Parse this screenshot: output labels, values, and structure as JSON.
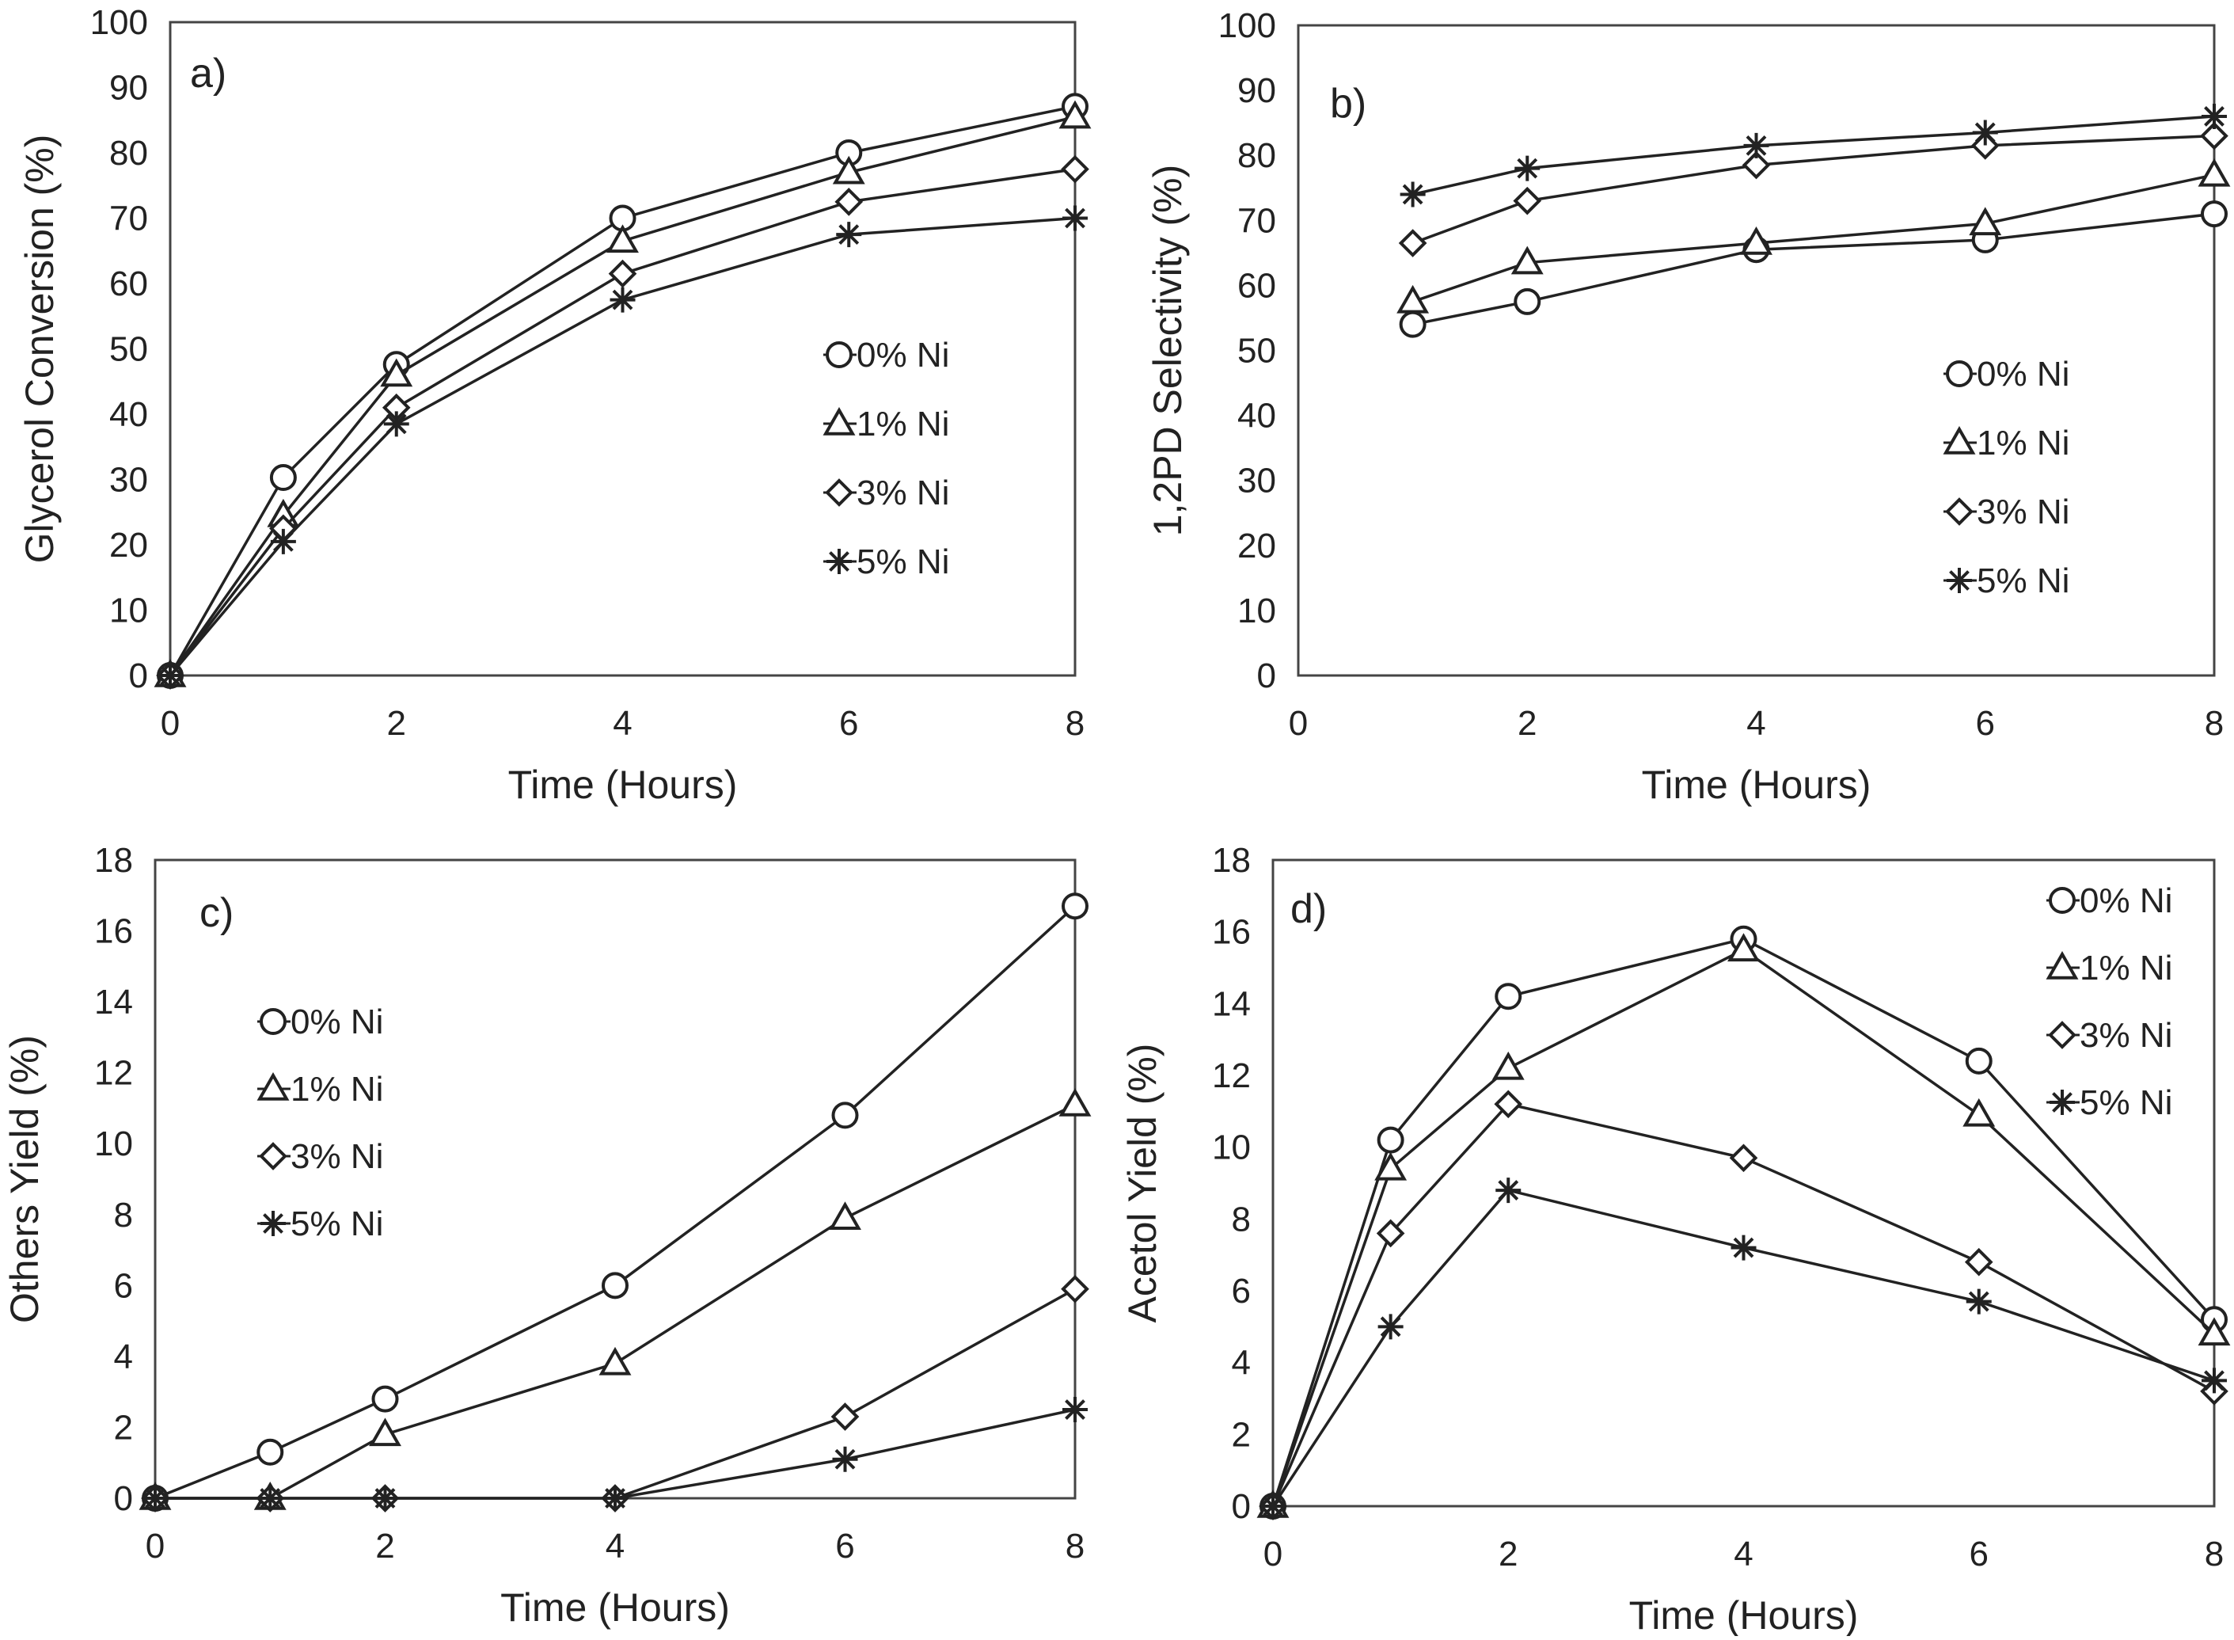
{
  "figure": {
    "legend_labels": [
      "0% Ni",
      "1% Ni",
      "3% Ni",
      "5% Ni"
    ],
    "colors": {
      "line": "#222222",
      "frame": "#444444",
      "background": "#ffffff"
    }
  },
  "chart_data": [
    {
      "id": "a",
      "type": "line",
      "panel_label": "a)",
      "xlabel": "Time (Hours)",
      "ylabel": "Glycerol Conversion (%)",
      "xlim": [
        0,
        8
      ],
      "ylim": [
        0,
        100
      ],
      "xticks": [
        0,
        2,
        4,
        6,
        8
      ],
      "yticks": [
        0,
        10,
        20,
        30,
        40,
        50,
        60,
        70,
        80,
        90,
        100
      ],
      "legend_position": "right-middle",
      "x": [
        0,
        1,
        2,
        4,
        6,
        8
      ],
      "series": [
        {
          "name": "0% Ni",
          "marker": "circle",
          "values": [
            0,
            30.3,
            47.6,
            70.0,
            80.0,
            87.1
          ]
        },
        {
          "name": "1% Ni",
          "marker": "triangle",
          "values": [
            0,
            24.5,
            46.0,
            66.5,
            77.0,
            85.5
          ]
        },
        {
          "name": "3% Ni",
          "marker": "diamond",
          "values": [
            0,
            22.5,
            41.0,
            61.5,
            72.5,
            77.5
          ]
        },
        {
          "name": "5% Ni",
          "marker": "asterisk",
          "values": [
            0,
            20.5,
            38.5,
            57.5,
            67.5,
            70.0
          ]
        }
      ]
    },
    {
      "id": "b",
      "type": "line",
      "panel_label": "b)",
      "xlabel": "Time (Hours)",
      "ylabel": "1,2PD Selectivity (%)",
      "xlim": [
        0,
        8
      ],
      "ylim": [
        0,
        100
      ],
      "xticks": [
        0,
        2,
        4,
        6,
        8
      ],
      "yticks": [
        0,
        10,
        20,
        30,
        40,
        50,
        60,
        70,
        80,
        90,
        100
      ],
      "legend_position": "right-middle",
      "x": [
        1,
        2,
        4,
        6,
        8
      ],
      "series": [
        {
          "name": "0% Ni",
          "marker": "circle",
          "values": [
            54.0,
            57.5,
            65.5,
            67.0,
            71.0
          ]
        },
        {
          "name": "1% Ni",
          "marker": "triangle",
          "values": [
            57.5,
            63.5,
            66.5,
            69.5,
            77.0
          ]
        },
        {
          "name": "3% Ni",
          "marker": "diamond",
          "values": [
            66.5,
            73.0,
            78.5,
            81.5,
            83.0
          ]
        },
        {
          "name": "5% Ni",
          "marker": "asterisk",
          "values": [
            74.0,
            78.0,
            81.5,
            83.5,
            86.0
          ]
        }
      ]
    },
    {
      "id": "c",
      "type": "line",
      "panel_label": "c)",
      "xlabel": "Time (Hours)",
      "ylabel": "Others Yield (%)",
      "xlim": [
        0,
        8
      ],
      "ylim": [
        0,
        18
      ],
      "xticks": [
        0,
        2,
        4,
        6,
        8
      ],
      "yticks": [
        0,
        2,
        4,
        6,
        8,
        10,
        12,
        14,
        16,
        18
      ],
      "legend_position": "left-middle",
      "x": [
        0,
        1,
        2,
        4,
        6,
        8
      ],
      "series": [
        {
          "name": "0% Ni",
          "marker": "circle",
          "values": [
            0,
            1.3,
            2.8,
            6.0,
            10.8,
            16.7
          ]
        },
        {
          "name": "1% Ni",
          "marker": "triangle",
          "values": [
            0,
            0,
            1.8,
            3.8,
            7.9,
            11.1
          ]
        },
        {
          "name": "3% Ni",
          "marker": "diamond",
          "values": [
            0,
            0,
            0,
            0,
            2.3,
            5.9
          ]
        },
        {
          "name": "5% Ni",
          "marker": "asterisk",
          "values": [
            0,
            0,
            0,
            0,
            1.1,
            2.5
          ]
        }
      ]
    },
    {
      "id": "d",
      "type": "line",
      "panel_label": "d)",
      "xlabel": "Time (Hours)",
      "ylabel": "Acetol Yield (%)",
      "xlim": [
        0,
        8
      ],
      "ylim": [
        0,
        18
      ],
      "xticks": [
        0,
        2,
        4,
        6,
        8
      ],
      "yticks": [
        0,
        2,
        4,
        6,
        8,
        10,
        12,
        14,
        16,
        18
      ],
      "legend_position": "top-right",
      "x": [
        0,
        1,
        2,
        4,
        6,
        8
      ],
      "series": [
        {
          "name": "0% Ni",
          "marker": "circle",
          "values": [
            0,
            10.2,
            14.2,
            15.8,
            12.4,
            5.2
          ]
        },
        {
          "name": "1% Ni",
          "marker": "triangle",
          "values": [
            0,
            9.4,
            12.2,
            15.5,
            10.9,
            4.8
          ]
        },
        {
          "name": "3% Ni",
          "marker": "diamond",
          "values": [
            0,
            7.6,
            11.2,
            9.7,
            6.8,
            3.2
          ]
        },
        {
          "name": "5% Ni",
          "marker": "asterisk",
          "values": [
            0,
            5.0,
            8.8,
            7.2,
            5.7,
            3.5
          ]
        }
      ]
    }
  ]
}
